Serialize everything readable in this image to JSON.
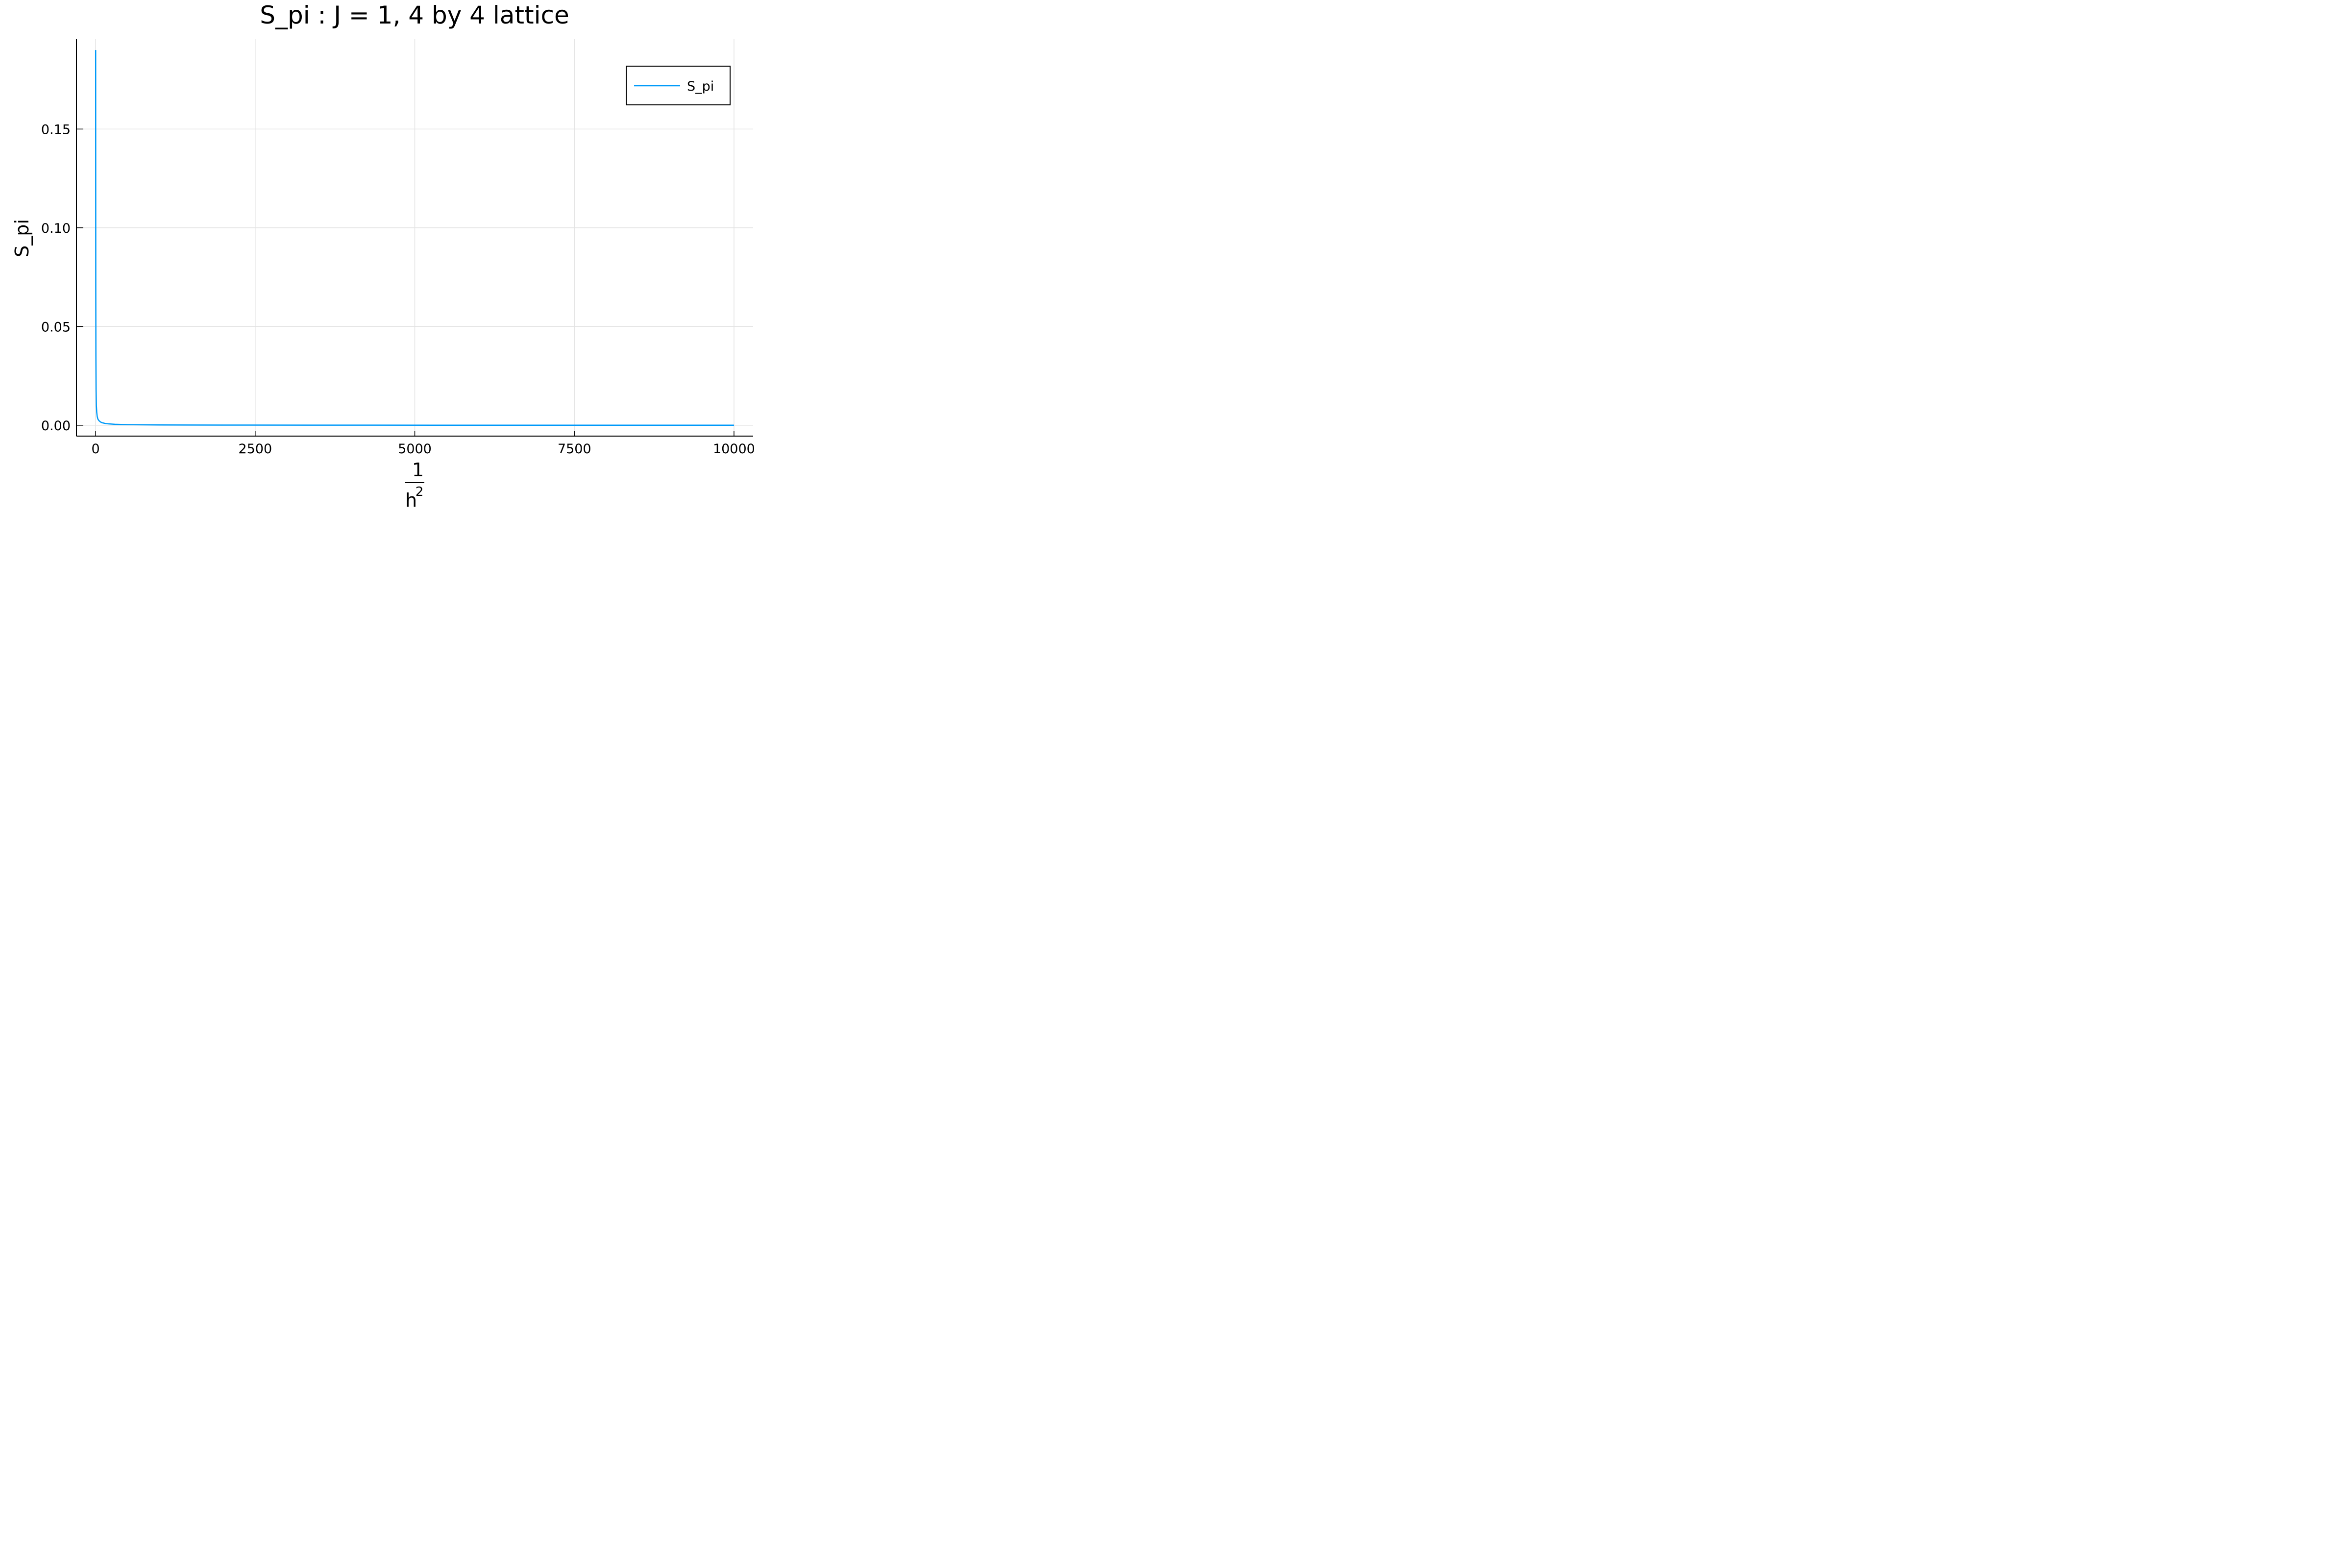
{
  "chart_data": {
    "type": "line",
    "title": "S_pi : J = 1, 4 by 4 lattice",
    "ylabel": "S_pi",
    "xlabel": {
      "numerator": "1",
      "denominator_base": "h",
      "denominator_exponent": "2"
    },
    "xlim": [
      -300,
      10300
    ],
    "ylim": [
      -0.0055,
      0.1955
    ],
    "xticks": [
      0,
      2500,
      5000,
      7500,
      10000
    ],
    "xtick_labels": [
      "0",
      "2500",
      "5000",
      "7500",
      "10000"
    ],
    "yticks": [
      0.0,
      0.05,
      0.1,
      0.15
    ],
    "ytick_labels": [
      "0.00",
      "0.05",
      "0.10",
      "0.15"
    ],
    "grid": true,
    "legend_position": "top-right",
    "series": [
      {
        "name": "S_pi",
        "color": "#009AF9",
        "x": [
          1,
          2,
          3,
          5,
          8,
          12,
          18,
          25,
          35,
          50,
          75,
          100,
          150,
          200,
          300,
          500,
          1000,
          2000,
          4000,
          6000,
          8000,
          10000
        ],
        "y": [
          0.19,
          0.12,
          0.07,
          0.035,
          0.018,
          0.01,
          0.0065,
          0.0045,
          0.0032,
          0.0024,
          0.0017,
          0.0013,
          0.0009,
          0.0007,
          0.0005,
          0.0003,
          0.00015,
          8e-05,
          4e-05,
          3e-05,
          2e-05,
          2e-05
        ]
      }
    ]
  }
}
